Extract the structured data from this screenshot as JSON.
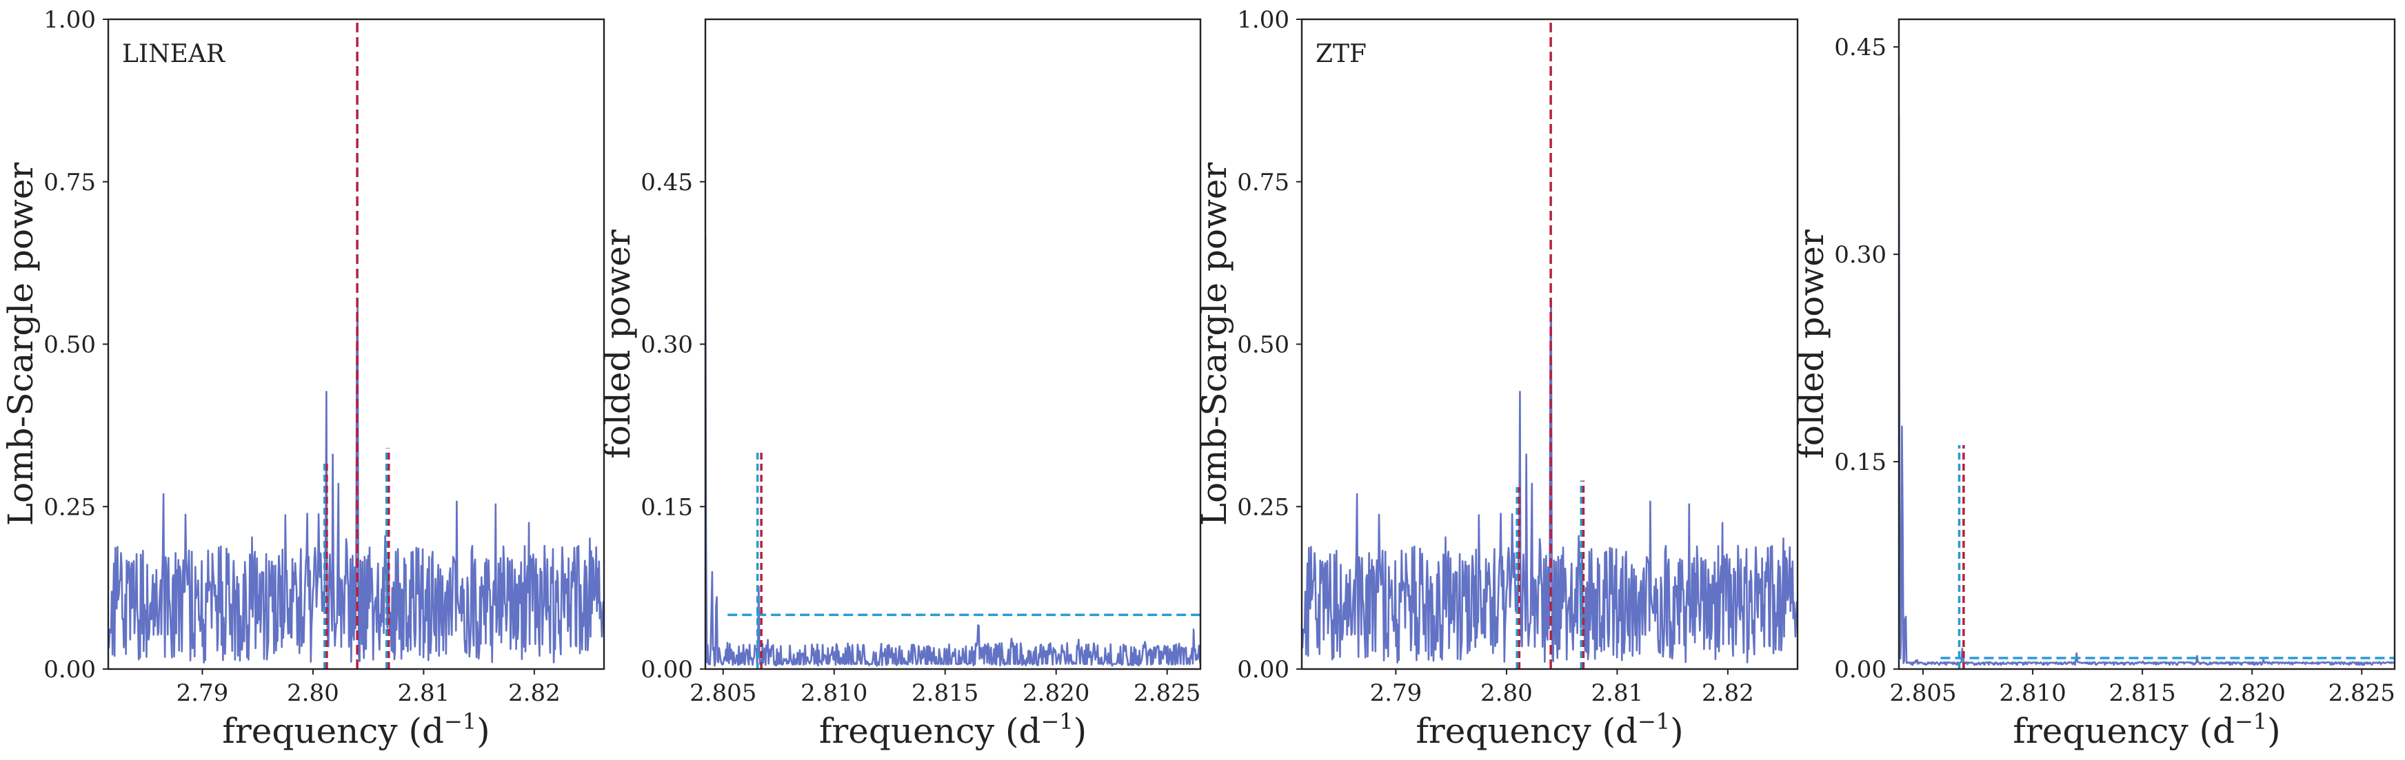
{
  "chart_data": [
    {
      "type": "line",
      "panel": "LINEAR periodogram",
      "annotation": "LINEAR",
      "xlabel": "frequency (d",
      "xlabel_sup": "−1",
      "xlabel_end": ")",
      "ylabel": "Lomb-Scargle power",
      "xlim": [
        2.7815,
        2.8263
      ],
      "ylim": [
        0,
        1.0
      ],
      "xticks": [
        2.79,
        2.8,
        2.81,
        2.82
      ],
      "xtick_labels": [
        "2.79",
        "2.80",
        "2.81",
        "2.82"
      ],
      "yticks": [
        0,
        0.25,
        0.5,
        0.75,
        1.0
      ],
      "ytick_labels": [
        "0.00",
        "0.25",
        "0.50",
        "0.75",
        "1.00"
      ],
      "grid": false,
      "series": [
        {
          "name": "periodogram",
          "color": "#6272c4",
          "seed": 11,
          "noise_level": 0.1,
          "noise_range": 0.09,
          "points": 700,
          "peaks": [
            [
              2.7865,
              0.27
            ],
            [
              2.7885,
              0.28
            ],
            [
              2.7905,
              0.17
            ],
            [
              2.7945,
              0.21
            ],
            [
              2.7975,
              0.24
            ],
            [
              2.7995,
              0.26
            ],
            [
              2.8005,
              0.24
            ],
            [
              2.8012,
              0.45
            ],
            [
              2.8018,
              0.35
            ],
            [
              2.8023,
              0.29
            ],
            [
              2.803,
              0.2
            ],
            [
              2.804,
              0.72
            ],
            [
              2.8065,
              0.24
            ],
            [
              2.809,
              0.2
            ],
            [
              2.813,
              0.27
            ],
            [
              2.8165,
              0.26
            ],
            [
              2.8195,
              0.24
            ],
            [
              2.8225,
              0.22
            ],
            [
              2.825,
              0.23
            ]
          ]
        }
      ],
      "vlines": [
        {
          "name": "main-frequency",
          "x": 2.804,
          "y0": 0,
          "y1": 1.0,
          "color": "#b5213e",
          "dash": "14 7"
        },
        {
          "name": "alias-left-a",
          "x": 2.80105,
          "y0": 0,
          "y1": 0.32,
          "color": "#2a9bd2",
          "dash": "10 6"
        },
        {
          "name": "alias-left-b",
          "x": 2.80125,
          "y0": 0,
          "y1": 0.32,
          "color": "#b5213e",
          "dash": "10 6"
        },
        {
          "name": "alias-right-a",
          "x": 2.80665,
          "y0": 0,
          "y1": 0.34,
          "color": "#2a9bd2",
          "dash": "10 6"
        },
        {
          "name": "alias-right-b",
          "x": 2.80685,
          "y0": 0,
          "y1": 0.34,
          "color": "#b5213e",
          "dash": "10 6"
        }
      ],
      "hlines": []
    },
    {
      "type": "line",
      "panel": "LINEAR folded",
      "annotation": "",
      "xlabel": "frequency (d",
      "xlabel_sup": "−1",
      "xlabel_end": ")",
      "ylabel": "folded power",
      "xlim": [
        2.8042,
        2.8265
      ],
      "ylim": [
        0,
        0.6
      ],
      "xticks": [
        2.805,
        2.81,
        2.815,
        2.82,
        2.825
      ],
      "xtick_labels": [
        "2.805",
        "2.810",
        "2.815",
        "2.820",
        "2.825"
      ],
      "yticks": [
        0,
        0.15,
        0.3,
        0.45
      ],
      "ytick_labels": [
        "0.00",
        "0.15",
        "0.30",
        "0.45"
      ],
      "grid": false,
      "series": [
        {
          "name": "folded",
          "color": "#6272c4",
          "seed": 23,
          "noise_level": 0.01,
          "noise_range": 0.014,
          "points": 650,
          "peaks": [
            [
              2.8042,
              0.4
            ],
            [
              2.8045,
              0.1
            ],
            [
              2.8047,
              0.08
            ],
            [
              2.8052,
              0.025
            ],
            [
              2.8058,
              0.015
            ],
            [
              2.8062,
              0.02
            ],
            [
              2.8066,
              0.075
            ],
            [
              2.807,
              0.03
            ],
            [
              2.809,
              0.02
            ],
            [
              2.812,
              0.012
            ],
            [
              2.8145,
              0.018
            ],
            [
              2.8165,
              0.05
            ],
            [
              2.818,
              0.025
            ],
            [
              2.821,
              0.03
            ],
            [
              2.824,
              0.028
            ],
            [
              2.8262,
              0.035
            ]
          ]
        }
      ],
      "vlines": [
        {
          "name": "alias-a",
          "x": 2.80655,
          "y0": 0,
          "y1": 0.2,
          "color": "#2a9bd2",
          "dash": "10 6"
        },
        {
          "name": "alias-b",
          "x": 2.80672,
          "y0": 0,
          "y1": 0.2,
          "color": "#b5213e",
          "dash": "10 6"
        }
      ],
      "hlines": [
        {
          "name": "threshold",
          "y": 0.05,
          "x0": 2.8052,
          "x1": 2.8265,
          "color": "#2a9bd2",
          "dash": "14 7"
        }
      ]
    },
    {
      "type": "line",
      "panel": "ZTF periodogram",
      "annotation": "ZTF",
      "xlabel": "frequency (d",
      "xlabel_sup": "−1",
      "xlabel_end": ")",
      "ylabel": "Lomb-Scargle power",
      "xlim": [
        2.7815,
        2.8263
      ],
      "ylim": [
        0,
        1.0
      ],
      "xticks": [
        2.79,
        2.8,
        2.81,
        2.82
      ],
      "xtick_labels": [
        "2.79",
        "2.80",
        "2.81",
        "2.82"
      ],
      "yticks": [
        0,
        0.25,
        0.5,
        0.75,
        1.0
      ],
      "ytick_labels": [
        "0.00",
        "0.25",
        "0.50",
        "0.75",
        "1.00"
      ],
      "grid": false,
      "series": [
        {
          "name": "periodogram",
          "color": "#6272c4",
          "seed": 11,
          "noise_level": 0.1,
          "noise_range": 0.09,
          "points": 700,
          "peaks": [
            [
              2.7865,
              0.27
            ],
            [
              2.7885,
              0.28
            ],
            [
              2.7905,
              0.17
            ],
            [
              2.7945,
              0.21
            ],
            [
              2.7975,
              0.24
            ],
            [
              2.7995,
              0.26
            ],
            [
              2.8005,
              0.24
            ],
            [
              2.8012,
              0.45
            ],
            [
              2.8018,
              0.35
            ],
            [
              2.8023,
              0.29
            ],
            [
              2.803,
              0.2
            ],
            [
              2.804,
              0.72
            ],
            [
              2.8065,
              0.24
            ],
            [
              2.809,
              0.2
            ],
            [
              2.813,
              0.27
            ],
            [
              2.8165,
              0.26
            ],
            [
              2.8195,
              0.24
            ],
            [
              2.8225,
              0.22
            ],
            [
              2.825,
              0.23
            ]
          ]
        }
      ],
      "vlines": [
        {
          "name": "main-frequency",
          "x": 2.804,
          "y0": 0,
          "y1": 1.0,
          "color": "#b5213e",
          "dash": "14 7"
        },
        {
          "name": "alias-left-a",
          "x": 2.80095,
          "y0": 0,
          "y1": 0.28,
          "color": "#2a9bd2",
          "dash": "10 6"
        },
        {
          "name": "alias-left-b",
          "x": 2.80115,
          "y0": 0,
          "y1": 0.28,
          "color": "#b5213e",
          "dash": "10 6"
        },
        {
          "name": "alias-right-a",
          "x": 2.80675,
          "y0": 0,
          "y1": 0.29,
          "color": "#2a9bd2",
          "dash": "10 6"
        },
        {
          "name": "alias-right-b",
          "x": 2.80695,
          "y0": 0,
          "y1": 0.29,
          "color": "#b5213e",
          "dash": "10 6"
        }
      ],
      "hlines": []
    },
    {
      "type": "line",
      "panel": "ZTF folded",
      "annotation": "",
      "xlabel": "frequency (d",
      "xlabel_sup": "−1",
      "xlabel_end": ")",
      "ylabel": "folded power",
      "xlim": [
        2.8039,
        2.8265
      ],
      "ylim": [
        0,
        0.47
      ],
      "xticks": [
        2.805,
        2.81,
        2.815,
        2.82,
        2.825
      ],
      "xtick_labels": [
        "2.805",
        "2.810",
        "2.815",
        "2.820",
        "2.825"
      ],
      "yticks": [
        0,
        0.15,
        0.3,
        0.45
      ],
      "ytick_labels": [
        "0.00",
        "0.15",
        "0.30",
        "0.45"
      ],
      "grid": false,
      "series": [
        {
          "name": "folded",
          "color": "#6272c4",
          "seed": 37,
          "noise_level": 0.0015,
          "noise_range": 0.002,
          "points": 650,
          "peaks": [
            [
              2.8039,
              0.4
            ],
            [
              2.80405,
              0.2
            ],
            [
              2.8042,
              0.05
            ],
            [
              2.8047,
              0.006
            ],
            [
              2.8068,
              0.018
            ],
            [
              2.8072,
              0.006
            ],
            [
              2.809,
              0.004
            ],
            [
              2.812,
              0.008
            ],
            [
              2.815,
              0.004
            ],
            [
              2.8175,
              0.005
            ],
            [
              2.8205,
              0.008
            ],
            [
              2.823,
              0.005
            ],
            [
              2.8258,
              0.005
            ]
          ]
        }
      ],
      "vlines": [
        {
          "name": "alias-a",
          "x": 2.80665,
          "y0": 0,
          "y1": 0.162,
          "color": "#2a9bd2",
          "dash": "10 6"
        },
        {
          "name": "alias-b",
          "x": 2.80685,
          "y0": 0,
          "y1": 0.162,
          "color": "#b5213e",
          "dash": "10 6"
        }
      ],
      "hlines": [
        {
          "name": "threshold",
          "y": 0.008,
          "x0": 2.8058,
          "x1": 2.8265,
          "color": "#2a9bd2",
          "dash": "14 7"
        }
      ]
    }
  ]
}
